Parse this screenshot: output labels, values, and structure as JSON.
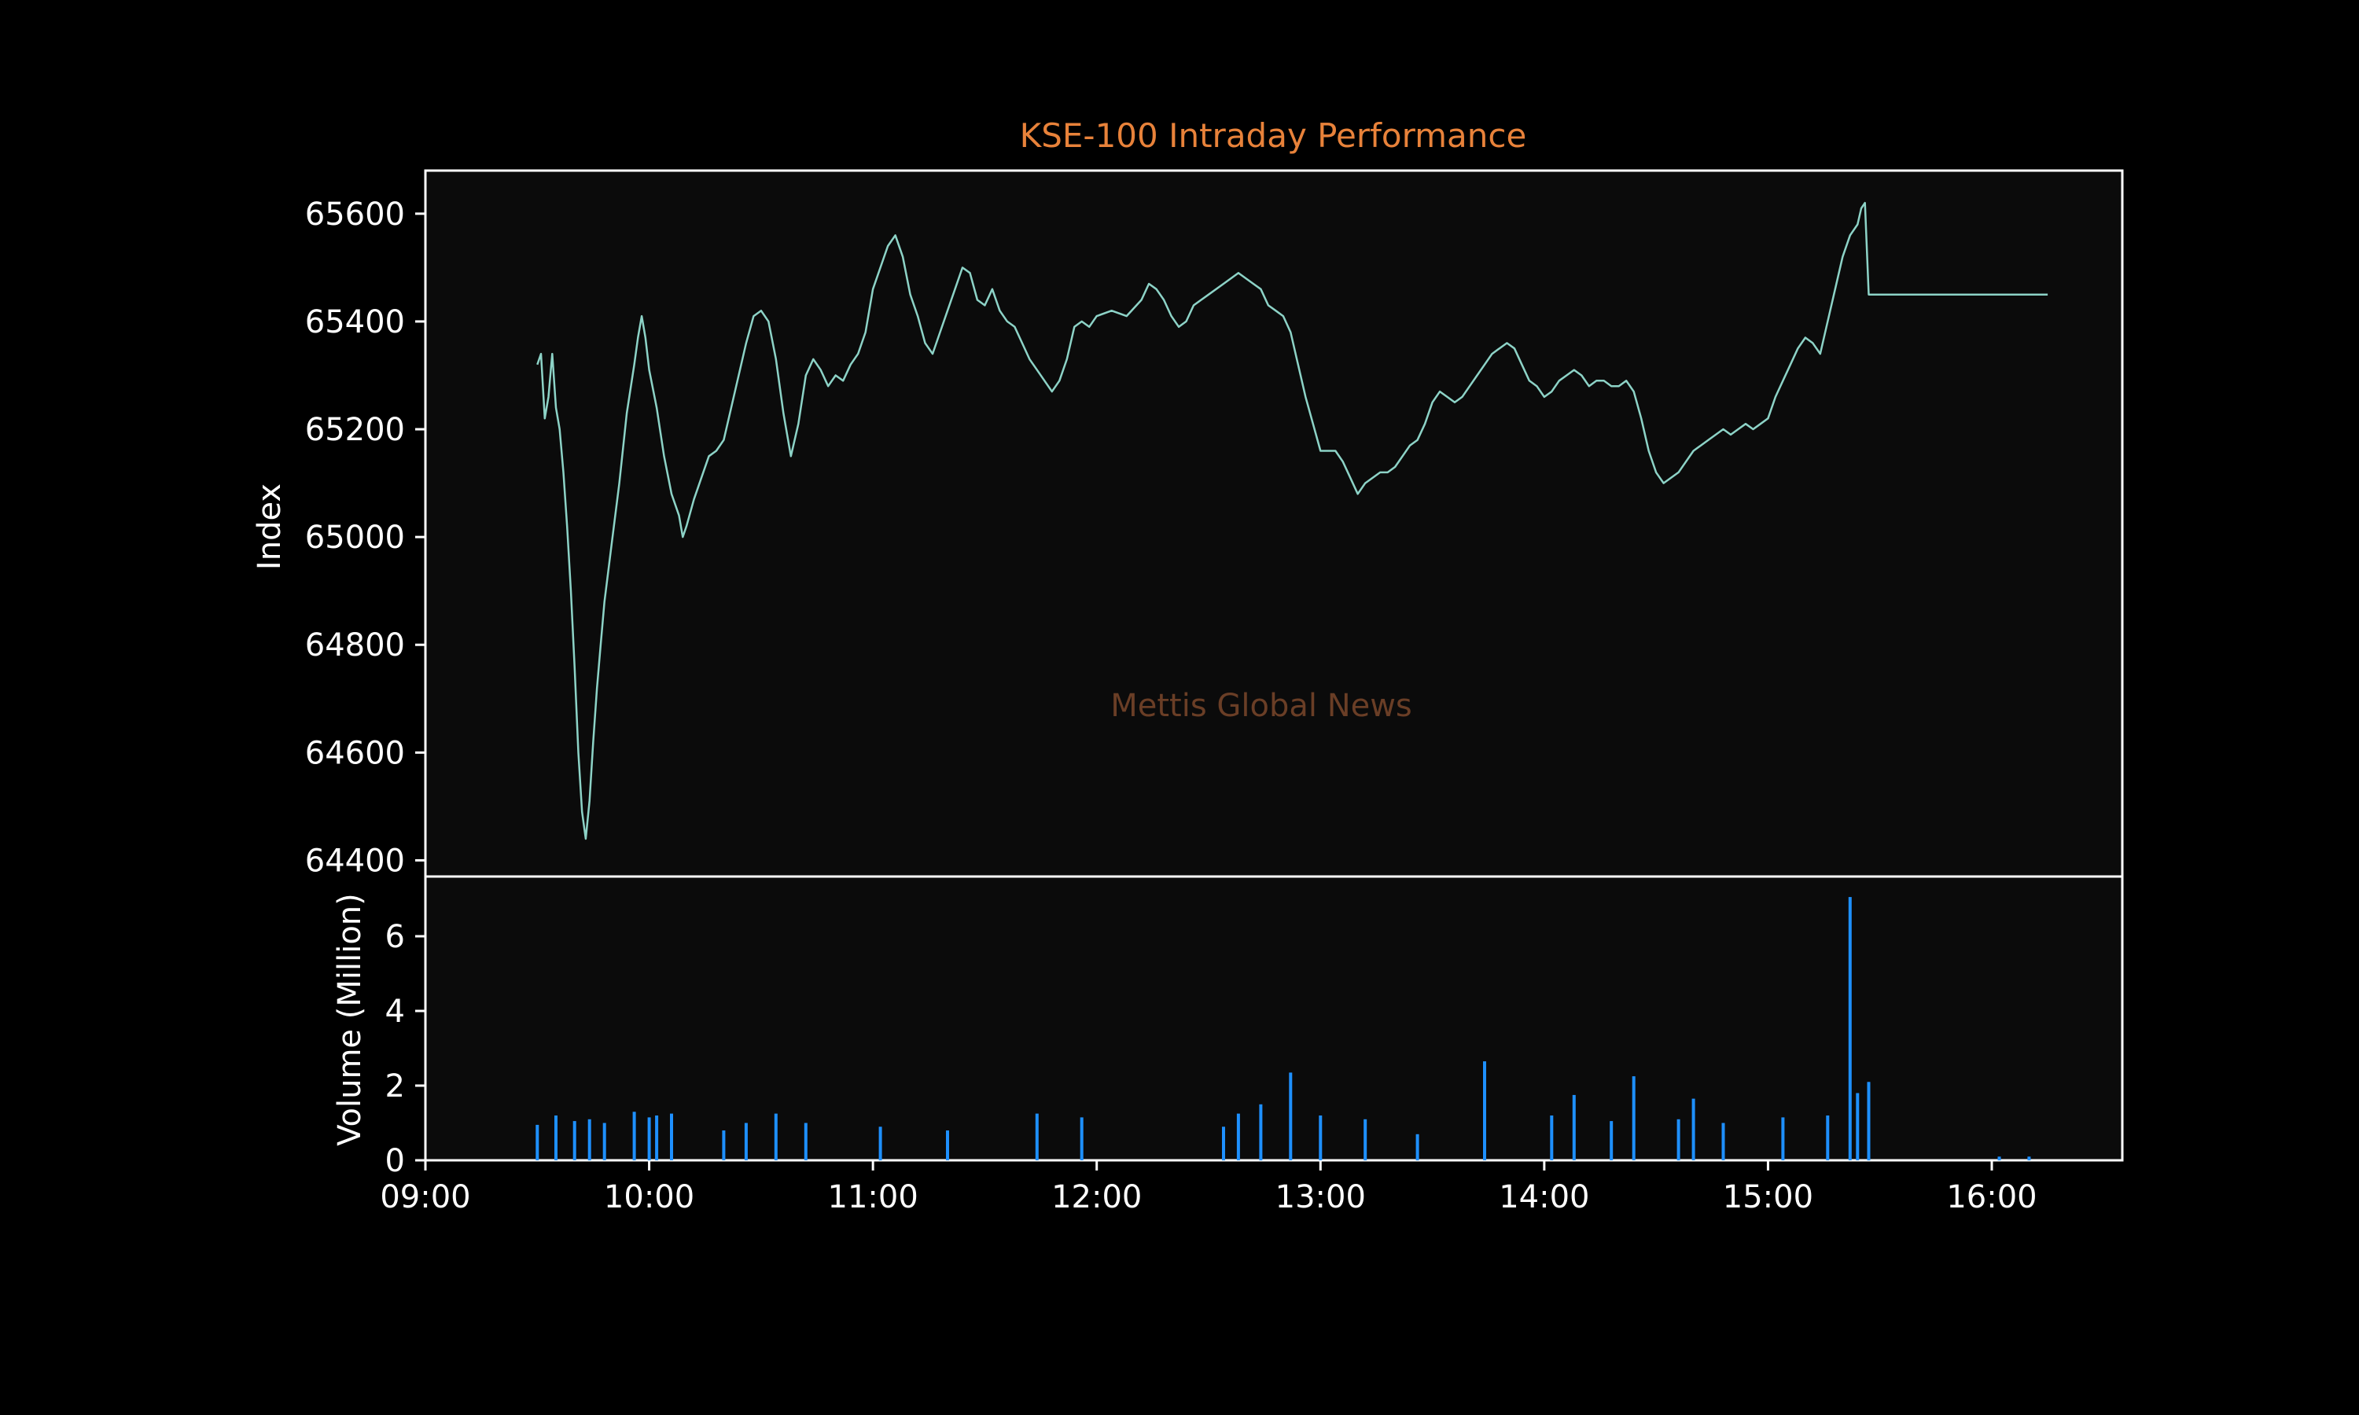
{
  "chart_data": [
    {
      "type": "line",
      "title": "KSE-100 Intraday Performance",
      "watermark": "Mettis Global News",
      "ylabel": "Index",
      "ylim": [
        64370,
        65680
      ],
      "yticks": [
        64400,
        64600,
        64800,
        65000,
        65200,
        65400,
        65600
      ],
      "ytick_labels": [
        "64400",
        "64600",
        "64800",
        "65000",
        "65200",
        "65400",
        "65600"
      ],
      "xlim": [
        "09:00",
        "16:35"
      ],
      "grid": false,
      "series": [
        {
          "color": "#8dd3c7",
          "points": [
            [
              "09:30",
              65320
            ],
            [
              "09:31",
              65340
            ],
            [
              "09:32",
              65220
            ],
            [
              "09:33",
              65260
            ],
            [
              "09:34",
              65340
            ],
            [
              "09:35",
              65240
            ],
            [
              "09:36",
              65200
            ],
            [
              "09:37",
              65120
            ],
            [
              "09:38",
              65020
            ],
            [
              "09:39",
              64900
            ],
            [
              "09:40",
              64760
            ],
            [
              "09:41",
              64600
            ],
            [
              "09:42",
              64490
            ],
            [
              "09:43",
              64440
            ],
            [
              "09:44",
              64510
            ],
            [
              "09:45",
              64620
            ],
            [
              "09:46",
              64720
            ],
            [
              "09:47",
              64800
            ],
            [
              "09:48",
              64880
            ],
            [
              "09:50",
              64990
            ],
            [
              "09:52",
              65100
            ],
            [
              "09:54",
              65230
            ],
            [
              "09:56",
              65320
            ],
            [
              "09:57",
              65370
            ],
            [
              "09:58",
              65410
            ],
            [
              "09:59",
              65370
            ],
            [
              "10:00",
              65310
            ],
            [
              "10:02",
              65240
            ],
            [
              "10:04",
              65150
            ],
            [
              "10:06",
              65080
            ],
            [
              "10:08",
              65040
            ],
            [
              "10:09",
              65000
            ],
            [
              "10:10",
              65020
            ],
            [
              "10:12",
              65070
            ],
            [
              "10:14",
              65110
            ],
            [
              "10:16",
              65150
            ],
            [
              "10:18",
              65160
            ],
            [
              "10:20",
              65180
            ],
            [
              "10:22",
              65240
            ],
            [
              "10:24",
              65300
            ],
            [
              "10:26",
              65360
            ],
            [
              "10:28",
              65410
            ],
            [
              "10:30",
              65420
            ],
            [
              "10:32",
              65400
            ],
            [
              "10:34",
              65330
            ],
            [
              "10:36",
              65230
            ],
            [
              "10:38",
              65150
            ],
            [
              "10:40",
              65210
            ],
            [
              "10:42",
              65300
            ],
            [
              "10:44",
              65330
            ],
            [
              "10:46",
              65310
            ],
            [
              "10:48",
              65280
            ],
            [
              "10:50",
              65300
            ],
            [
              "10:52",
              65290
            ],
            [
              "10:54",
              65320
            ],
            [
              "10:56",
              65340
            ],
            [
              "10:58",
              65380
            ],
            [
              "11:00",
              65460
            ],
            [
              "11:02",
              65500
            ],
            [
              "11:04",
              65540
            ],
            [
              "11:06",
              65560
            ],
            [
              "11:08",
              65520
            ],
            [
              "11:10",
              65450
            ],
            [
              "11:12",
              65410
            ],
            [
              "11:14",
              65360
            ],
            [
              "11:16",
              65340
            ],
            [
              "11:18",
              65380
            ],
            [
              "11:20",
              65420
            ],
            [
              "11:22",
              65460
            ],
            [
              "11:24",
              65500
            ],
            [
              "11:26",
              65490
            ],
            [
              "11:28",
              65440
            ],
            [
              "11:30",
              65430
            ],
            [
              "11:32",
              65460
            ],
            [
              "11:34",
              65420
            ],
            [
              "11:36",
              65400
            ],
            [
              "11:38",
              65390
            ],
            [
              "11:40",
              65360
            ],
            [
              "11:42",
              65330
            ],
            [
              "11:44",
              65310
            ],
            [
              "11:46",
              65290
            ],
            [
              "11:48",
              65270
            ],
            [
              "11:50",
              65290
            ],
            [
              "11:52",
              65330
            ],
            [
              "11:54",
              65390
            ],
            [
              "11:56",
              65400
            ],
            [
              "11:58",
              65390
            ],
            [
              "12:00",
              65410
            ],
            [
              "12:04",
              65420
            ],
            [
              "12:08",
              65410
            ],
            [
              "12:12",
              65440
            ],
            [
              "12:14",
              65470
            ],
            [
              "12:16",
              65460
            ],
            [
              "12:18",
              65440
            ],
            [
              "12:20",
              65410
            ],
            [
              "12:22",
              65390
            ],
            [
              "12:24",
              65400
            ],
            [
              "12:26",
              65430
            ],
            [
              "12:28",
              65440
            ],
            [
              "12:30",
              65450
            ],
            [
              "12:34",
              65470
            ],
            [
              "12:38",
              65490
            ],
            [
              "12:42",
              65470
            ],
            [
              "12:44",
              65460
            ],
            [
              "12:46",
              65430
            ],
            [
              "12:48",
              65420
            ],
            [
              "12:50",
              65410
            ],
            [
              "12:52",
              65380
            ],
            [
              "12:54",
              65320
            ],
            [
              "12:56",
              65260
            ],
            [
              "12:58",
              65210
            ],
            [
              "13:00",
              65160
            ],
            [
              "13:04",
              65160
            ],
            [
              "13:06",
              65140
            ],
            [
              "13:08",
              65110
            ],
            [
              "13:10",
              65080
            ],
            [
              "13:12",
              65100
            ],
            [
              "13:14",
              65110
            ],
            [
              "13:16",
              65120
            ],
            [
              "13:18",
              65120
            ],
            [
              "13:20",
              65130
            ],
            [
              "13:22",
              65150
            ],
            [
              "13:24",
              65170
            ],
            [
              "13:26",
              65180
            ],
            [
              "13:28",
              65210
            ],
            [
              "13:30",
              65250
            ],
            [
              "13:32",
              65270
            ],
            [
              "13:34",
              65260
            ],
            [
              "13:36",
              65250
            ],
            [
              "13:38",
              65260
            ],
            [
              "13:40",
              65280
            ],
            [
              "13:42",
              65300
            ],
            [
              "13:44",
              65320
            ],
            [
              "13:46",
              65340
            ],
            [
              "13:48",
              65350
            ],
            [
              "13:50",
              65360
            ],
            [
              "13:52",
              65350
            ],
            [
              "13:54",
              65320
            ],
            [
              "13:56",
              65290
            ],
            [
              "13:58",
              65280
            ],
            [
              "14:00",
              65260
            ],
            [
              "14:02",
              65270
            ],
            [
              "14:04",
              65290
            ],
            [
              "14:06",
              65300
            ],
            [
              "14:08",
              65310
            ],
            [
              "14:10",
              65300
            ],
            [
              "14:12",
              65280
            ],
            [
              "14:14",
              65290
            ],
            [
              "14:16",
              65290
            ],
            [
              "14:18",
              65280
            ],
            [
              "14:20",
              65280
            ],
            [
              "14:22",
              65290
            ],
            [
              "14:24",
              65270
            ],
            [
              "14:26",
              65220
            ],
            [
              "14:28",
              65160
            ],
            [
              "14:30",
              65120
            ],
            [
              "14:32",
              65100
            ],
            [
              "14:34",
              65110
            ],
            [
              "14:36",
              65120
            ],
            [
              "14:38",
              65140
            ],
            [
              "14:40",
              65160
            ],
            [
              "14:42",
              65170
            ],
            [
              "14:44",
              65180
            ],
            [
              "14:46",
              65190
            ],
            [
              "14:48",
              65200
            ],
            [
              "14:50",
              65190
            ],
            [
              "14:52",
              65200
            ],
            [
              "14:54",
              65210
            ],
            [
              "14:56",
              65200
            ],
            [
              "14:58",
              65210
            ],
            [
              "15:00",
              65220
            ],
            [
              "15:02",
              65260
            ],
            [
              "15:04",
              65290
            ],
            [
              "15:06",
              65320
            ],
            [
              "15:08",
              65350
            ],
            [
              "15:10",
              65370
            ],
            [
              "15:12",
              65360
            ],
            [
              "15:14",
              65340
            ],
            [
              "15:16",
              65400
            ],
            [
              "15:18",
              65460
            ],
            [
              "15:20",
              65520
            ],
            [
              "15:22",
              65560
            ],
            [
              "15:24",
              65580
            ],
            [
              "15:25",
              65610
            ],
            [
              "15:26",
              65620
            ],
            [
              "15:27",
              65450
            ],
            [
              "15:30",
              65450
            ],
            [
              "16:10",
              65450
            ],
            [
              "16:15",
              65450
            ]
          ]
        }
      ]
    },
    {
      "type": "bar",
      "ylabel": "Volume (Million)",
      "ylim": [
        0,
        7.6
      ],
      "yticks": [
        0,
        2,
        4,
        6
      ],
      "ytick_labels": [
        "0",
        "2",
        "4",
        "6"
      ],
      "xticks": [
        "09:00",
        "10:00",
        "11:00",
        "12:00",
        "13:00",
        "14:00",
        "15:00",
        "16:00"
      ],
      "xtick_labels": [
        "09:00",
        "10:00",
        "11:00",
        "12:00",
        "13:00",
        "14:00",
        "15:00",
        "16:00"
      ],
      "xlim": [
        "09:00",
        "16:35"
      ],
      "grid": false,
      "series": [
        {
          "color": "#1e90ff",
          "points": [
            [
              "09:30",
              0.95
            ],
            [
              "09:35",
              1.2
            ],
            [
              "09:40",
              1.05
            ],
            [
              "09:44",
              1.1
            ],
            [
              "09:48",
              1.0
            ],
            [
              "09:56",
              1.3
            ],
            [
              "10:00",
              1.15
            ],
            [
              "10:02",
              1.2
            ],
            [
              "10:06",
              1.25
            ],
            [
              "10:20",
              0.8
            ],
            [
              "10:26",
              1.0
            ],
            [
              "10:34",
              1.25
            ],
            [
              "10:42",
              1.0
            ],
            [
              "11:02",
              0.9
            ],
            [
              "11:20",
              0.8
            ],
            [
              "11:44",
              1.25
            ],
            [
              "11:56",
              1.15
            ],
            [
              "12:34",
              0.9
            ],
            [
              "12:38",
              1.25
            ],
            [
              "12:44",
              1.5
            ],
            [
              "12:52",
              2.35
            ],
            [
              "13:00",
              1.2
            ],
            [
              "13:12",
              1.1
            ],
            [
              "13:26",
              0.7
            ],
            [
              "13:44",
              2.65
            ],
            [
              "14:02",
              1.2
            ],
            [
              "14:08",
              1.75
            ],
            [
              "14:18",
              1.05
            ],
            [
              "14:24",
              2.25
            ],
            [
              "14:36",
              1.1
            ],
            [
              "14:40",
              1.65
            ],
            [
              "14:48",
              1.0
            ],
            [
              "15:04",
              1.15
            ],
            [
              "15:16",
              1.2
            ],
            [
              "15:22",
              7.05
            ],
            [
              "15:24",
              1.8
            ],
            [
              "15:27",
              2.1
            ],
            [
              "16:02",
              0.1
            ],
            [
              "16:10",
              0.1
            ]
          ]
        }
      ]
    }
  ]
}
